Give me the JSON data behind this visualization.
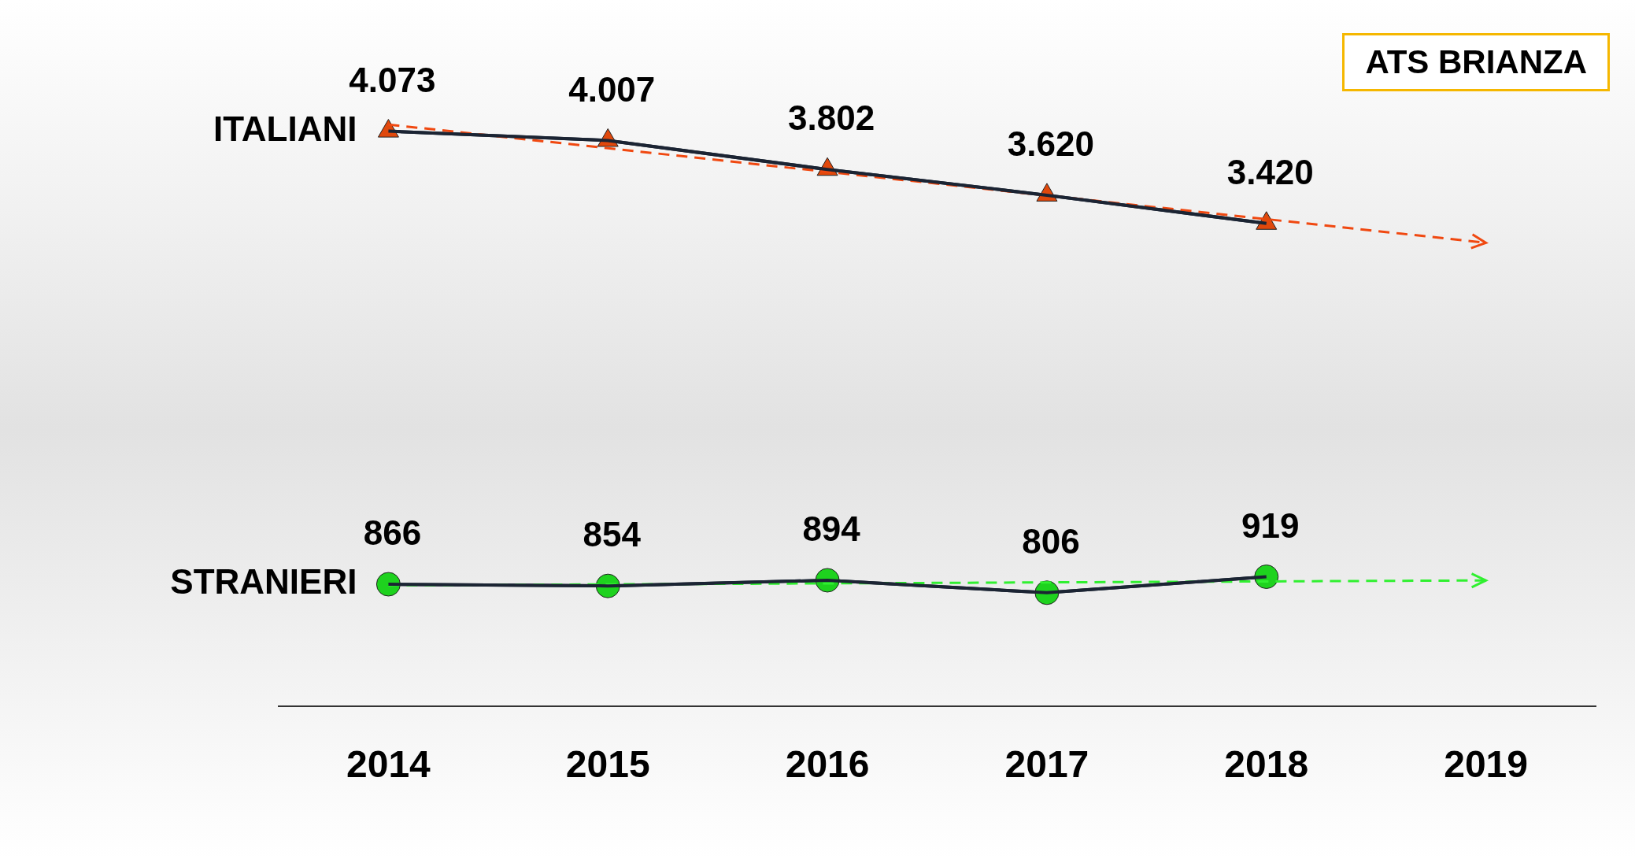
{
  "chart_data": {
    "type": "line",
    "title": "ATS BRIANZA",
    "categories": [
      "2014",
      "2015",
      "2016",
      "2017",
      "2018",
      "2019"
    ],
    "tick_labels": "x",
    "grid": false,
    "legend": false,
    "series": [
      {
        "name": "ITALIANI",
        "color": "#e0480c",
        "marker": "triangle",
        "values": [
          4073,
          4007,
          3802,
          3620,
          3420,
          null
        ],
        "value_labels": [
          "4.073",
          "4.007",
          "3.802",
          "3.620",
          "3.420",
          null
        ]
      },
      {
        "name": "STRANIERI",
        "color": "#1ed21e",
        "marker": "circle",
        "values": [
          866,
          854,
          894,
          806,
          919,
          null
        ],
        "value_labels": [
          "866",
          "854",
          "894",
          "806",
          "919",
          null
        ]
      },
      {
        "type": "line",
        "color": "#f04810",
        "line_style": "dashed",
        "values": [
          4120,
          null,
          null,
          null,
          null,
          3283
        ]
      },
      {
        "type": "line",
        "color": "#30f030",
        "line_style": "dashed",
        "values": [
          858,
          null,
          null,
          null,
          null,
          893
        ]
      }
    ]
  }
}
